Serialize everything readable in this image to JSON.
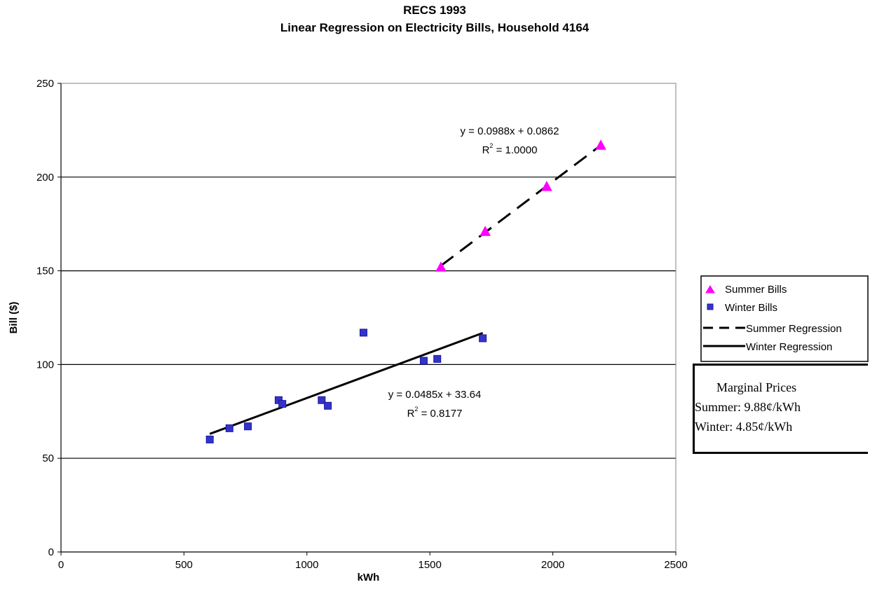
{
  "chart_data": {
    "type": "scatter",
    "title": [
      "RECS 1993",
      "Linear Regression on Electricity Bills, Household 4164"
    ],
    "xlabel": "kWh",
    "ylabel": "Bill ($)",
    "xlim": [
      0,
      2500
    ],
    "ylim": [
      0,
      250
    ],
    "xticks": [
      "0",
      "500",
      "1000",
      "1500",
      "2000",
      "2500"
    ],
    "yticks": [
      "0",
      "50",
      "100",
      "150",
      "200",
      "250"
    ],
    "grid": "horizontal major gridlines",
    "series": [
      {
        "name": "Summer Bills",
        "marker": "triangle",
        "color": "#ff00ff",
        "points": [
          [
            1545,
            152
          ],
          [
            1725,
            171
          ],
          [
            1975,
            195
          ],
          [
            2195,
            217
          ]
        ]
      },
      {
        "name": "Winter Bills",
        "marker": "square",
        "color": "#3333cc",
        "points": [
          [
            605,
            60
          ],
          [
            685,
            66
          ],
          [
            760,
            67
          ],
          [
            885,
            81
          ],
          [
            900,
            79
          ],
          [
            1060,
            81
          ],
          [
            1085,
            78
          ],
          [
            1230,
            117
          ],
          [
            1475,
            102
          ],
          [
            1530,
            103
          ],
          [
            1715,
            114
          ]
        ]
      }
    ],
    "regressions": [
      {
        "name": "Summer Regression",
        "style": "dashed",
        "x_range": [
          1545,
          2195
        ],
        "slope": 0.0988,
        "intercept": 0.0862,
        "equation": "y = 0.0988x + 0.0862",
        "r2_prefix": "R",
        "r2_sup": "2",
        "r2_value": " = 1.0000"
      },
      {
        "name": "Winter Regression",
        "style": "solid",
        "x_range": [
          605,
          1715
        ],
        "slope": 0.0485,
        "intercept": 33.64,
        "equation": "y = 0.0485x + 33.64",
        "r2_prefix": "R",
        "r2_sup": "2",
        "r2_value": " = 0.8177"
      }
    ],
    "legend": {
      "placement": "right",
      "entries": [
        "Summer Bills",
        "Winter Bills",
        "Summer Regression",
        "Winter Regression"
      ]
    }
  },
  "marginal_prices": {
    "title": "Marginal Prices",
    "summer": "Summer: 9.88¢/kWh",
    "winter": "Winter: 4.85¢/kWh"
  }
}
